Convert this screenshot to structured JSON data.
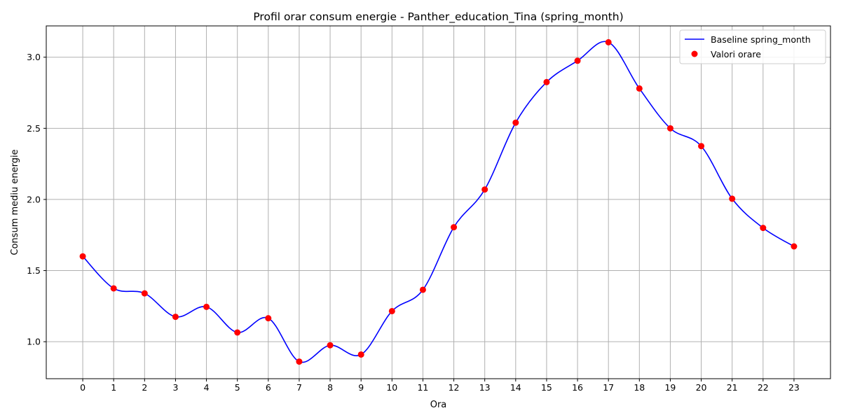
{
  "chart_data": {
    "type": "line",
    "title": "Profil orar consum energie - Panther_education_Tina (spring_month)",
    "xlabel": "Ora",
    "ylabel": "Consum mediu energie",
    "x": [
      0,
      1,
      2,
      3,
      4,
      5,
      6,
      7,
      8,
      9,
      10,
      11,
      12,
      13,
      14,
      15,
      16,
      17,
      18,
      19,
      20,
      21,
      22,
      23
    ],
    "x_ticks": [
      "0",
      "1",
      "2",
      "3",
      "4",
      "5",
      "6",
      "7",
      "8",
      "9",
      "10",
      "11",
      "12",
      "13",
      "14",
      "15",
      "16",
      "17",
      "18",
      "19",
      "20",
      "21",
      "22",
      "23"
    ],
    "y_ticks": [
      "1.0",
      "1.5",
      "2.0",
      "2.5",
      "3.0"
    ],
    "y_tick_values": [
      1.0,
      1.5,
      2.0,
      2.5,
      3.0
    ],
    "xlim": [
      -1.18,
      24.18
    ],
    "ylim": [
      0.74,
      3.22
    ],
    "grid": true,
    "legend_position": "top-right",
    "series": [
      {
        "name": "Baseline spring_month",
        "kind": "line",
        "color": "#0000ff",
        "values": [
          1.6,
          1.375,
          1.34,
          1.175,
          1.245,
          1.065,
          1.165,
          0.86,
          0.975,
          0.91,
          1.215,
          1.365,
          1.805,
          2.07,
          2.54,
          2.825,
          2.975,
          3.105,
          2.78,
          2.5,
          2.375,
          2.005,
          1.8,
          1.67
        ]
      },
      {
        "name": "Valori orare",
        "kind": "scatter",
        "color": "#ff0000",
        "values": [
          1.6,
          1.375,
          1.34,
          1.175,
          1.245,
          1.065,
          1.165,
          0.86,
          0.975,
          0.91,
          1.215,
          1.365,
          1.805,
          2.07,
          2.54,
          2.825,
          2.975,
          3.105,
          2.78,
          2.5,
          2.375,
          2.005,
          1.8,
          1.67
        ]
      }
    ]
  }
}
